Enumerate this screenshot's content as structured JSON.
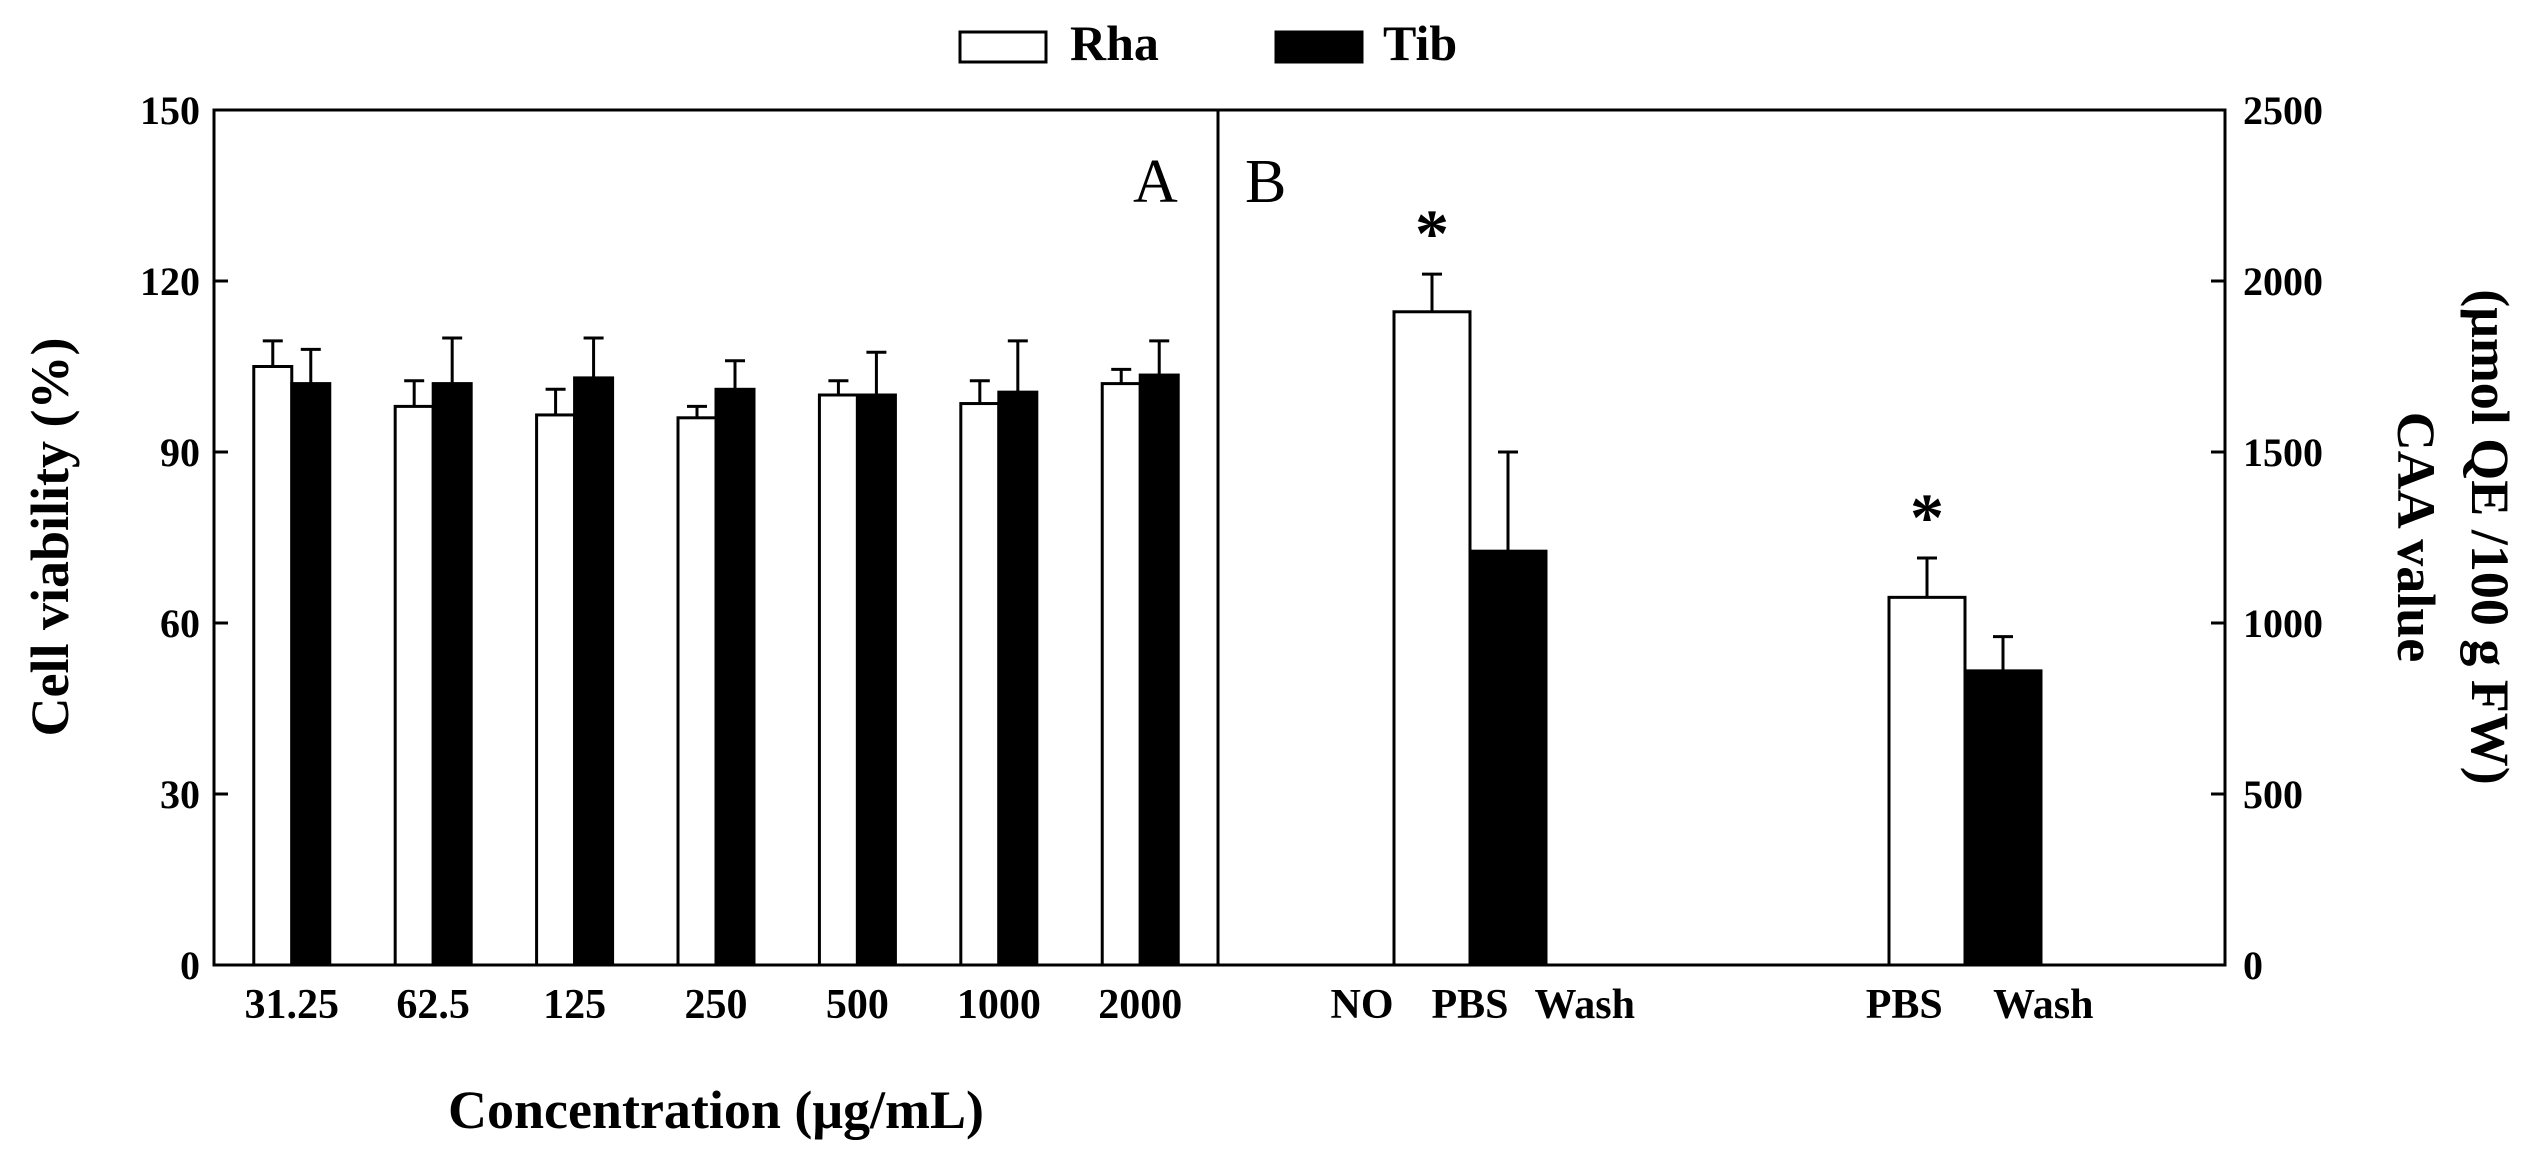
{
  "chart_data": [
    {
      "panel": "A",
      "type": "bar",
      "xlabel": "Concentration (μg/mL)",
      "ylabel": "Cell viability (%)",
      "ylim": [
        0,
        150
      ],
      "yticks": [
        0,
        30,
        60,
        90,
        120,
        150
      ],
      "categories": [
        "31.25",
        "62.5",
        "125",
        "250",
        "500",
        "1000",
        "2000"
      ],
      "series": [
        {
          "name": "Rha",
          "fill": "#ffffff",
          "values": [
            105,
            98,
            96.5,
            96,
            100,
            98.5,
            102
          ],
          "errors": [
            4.5,
            4.5,
            4.5,
            2,
            2.5,
            4,
            2.5
          ]
        },
        {
          "name": "Tib",
          "fill": "#000000",
          "values": [
            102,
            102,
            103,
            101,
            100,
            100.5,
            103.5
          ],
          "errors": [
            6,
            8,
            7,
            5,
            7.5,
            9,
            6
          ]
        }
      ]
    },
    {
      "panel": "B",
      "type": "bar",
      "ylabel_lines": [
        "CAA value",
        "(μmol QE /100 g  FW)"
      ],
      "ylim": [
        0,
        2500
      ],
      "yticks": [
        0,
        500,
        1000,
        1500,
        2000,
        2500
      ],
      "groups": [
        {
          "labels": [
            "NO",
            "PBS",
            "Wash"
          ],
          "bars": [
            {
              "series": "Rha",
              "value": 1910,
              "error": 110,
              "significance": "*"
            },
            {
              "series": "Tib",
              "value": 1210,
              "error": 290
            }
          ]
        },
        {
          "labels": [
            "PBS",
            "Wash"
          ],
          "bars": [
            {
              "series": "Rha",
              "value": 1075,
              "error": 115,
              "significance": "*"
            },
            {
              "series": "Tib",
              "value": 860,
              "error": 100
            }
          ]
        }
      ]
    }
  ],
  "legend": [
    {
      "label": "Rha",
      "fill": "#ffffff"
    },
    {
      "label": "Tib",
      "fill": "#000000"
    }
  ],
  "panel_labels": {
    "a": "A",
    "b": "B"
  }
}
